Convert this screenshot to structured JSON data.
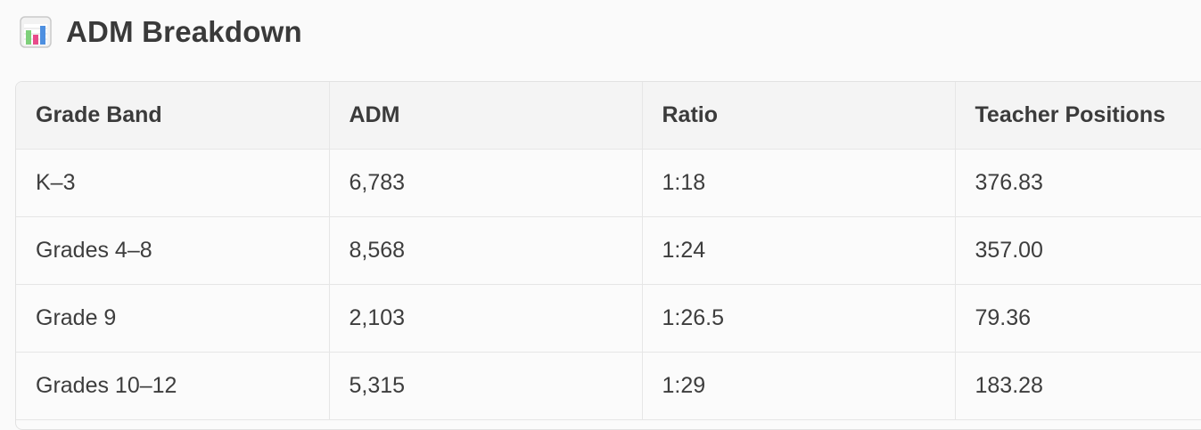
{
  "heading": {
    "icon": "bar-chart-icon",
    "title": "ADM Breakdown"
  },
  "table": {
    "columns": [
      "Grade Band",
      "ADM",
      "Ratio",
      "Teacher Positions"
    ],
    "rows": [
      [
        "K–3",
        "6,783",
        "1:18",
        "376.83"
      ],
      [
        "Grades 4–8",
        "8,568",
        "1:24",
        "357.00"
      ],
      [
        "Grade 9",
        "2,103",
        "1:26.5",
        "79.36"
      ],
      [
        "Grades 10–12",
        "5,315",
        "1:29",
        "183.28"
      ]
    ]
  },
  "colors": {
    "icon_bar_green": "#7ed07a",
    "icon_bar_pink": "#e84b8a",
    "icon_bar_blue": "#4d8fe0"
  }
}
